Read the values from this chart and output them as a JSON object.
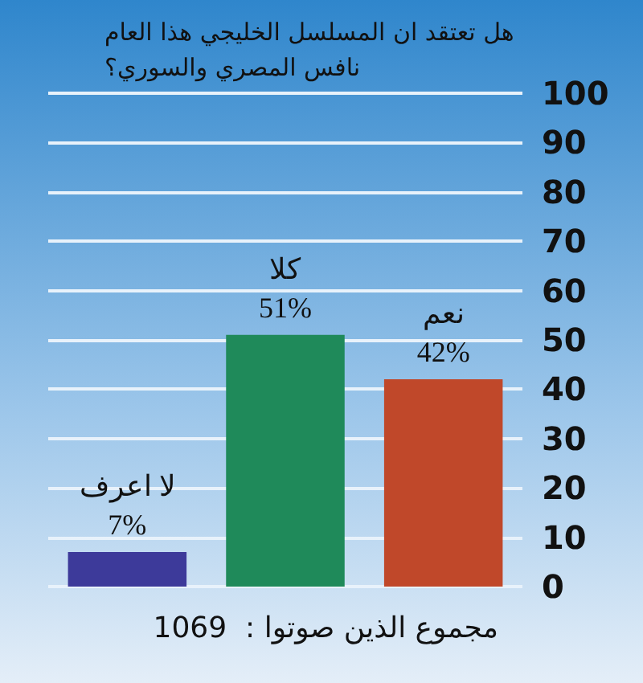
{
  "chart_data": {
    "type": "bar",
    "title": "هل تعتقد ان المسلسل الخليجي هذا العام\nنافس المصري والسوري؟",
    "categories": [
      "لا اعرف",
      "كلا",
      "نعم"
    ],
    "values": [
      7,
      51,
      42
    ],
    "colors": [
      "#3d3a9a",
      "#1f8a5a",
      "#c0482a"
    ],
    "value_labels": [
      "7%",
      "51%",
      "42%"
    ],
    "ylim": [
      0,
      100
    ],
    "yticks": [
      0,
      10,
      20,
      30,
      40,
      50,
      60,
      70,
      80,
      90,
      100
    ],
    "grid": "y",
    "annotations": [
      "مجموع الذين صوتوا :  1069"
    ]
  }
}
